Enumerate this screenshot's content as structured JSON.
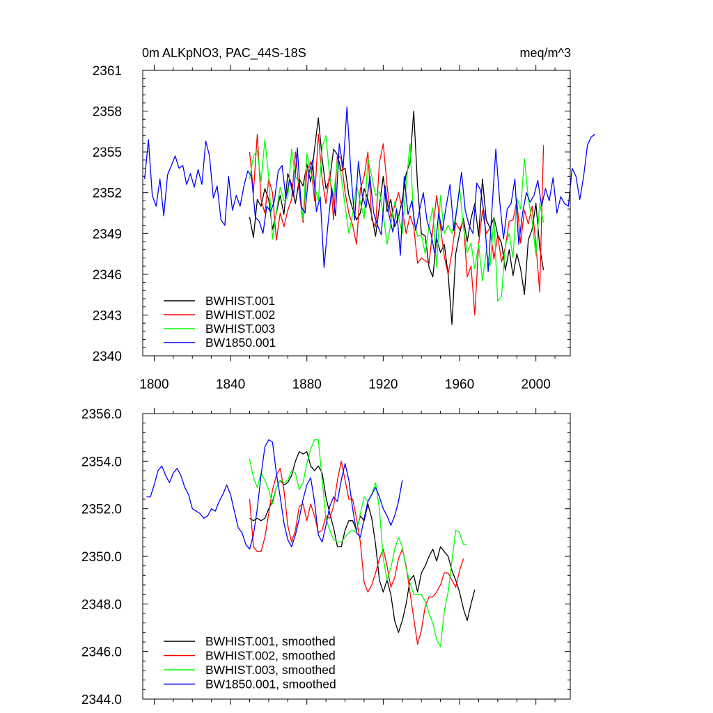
{
  "chart_data": [
    {
      "type": "line",
      "title": "0m ALKpNO3, PAC_44S-18S",
      "units": "meq/m^3",
      "xlim": [
        1794,
        2018
      ],
      "ylim": [
        2340,
        2361
      ],
      "y_ticks": [
        2340,
        2343,
        2346,
        2349,
        2352,
        2355,
        2358,
        2361
      ],
      "y_tick_labels": [
        "2340",
        "2343",
        "2346",
        "2349",
        "2352",
        "2355",
        "2358",
        "2361"
      ],
      "x_ticks": [
        1800,
        1840,
        1880,
        1920,
        1960,
        2000
      ],
      "x_tick_labels": [
        "1800",
        "1840",
        "1880",
        "1920",
        "1960",
        "2000"
      ],
      "legend": "bottom-left",
      "grid": false,
      "series": [
        {
          "name": "BWHIST.001",
          "color": "#000000",
          "x_start": 1850,
          "x_step": 2,
          "values": [
            2350.2,
            2348.7,
            2351.5,
            2351.0,
            2352.3,
            2351.5,
            2349.3,
            2350.5,
            2351.8,
            2350.4,
            2353.4,
            2352.6,
            2351.2,
            2353.0,
            2352.5,
            2354.1,
            2352.8,
            2355.2,
            2357.5,
            2354.5,
            2352.3,
            2353.0,
            2355.2,
            2354.8,
            2353.6,
            2353.8,
            2351.8,
            2350.8,
            2350.0,
            2350.5,
            2352.3,
            2351.5,
            2350.3,
            2348.8,
            2351.0,
            2353.2,
            2350.6,
            2351.5,
            2349.5,
            2350.2,
            2351.5,
            2353.4,
            2354.2,
            2358.0,
            2352.5,
            2349.0,
            2348.8,
            2346.5,
            2345.8,
            2348.6,
            2347.6,
            2348.2,
            2346.0,
            2342.3,
            2347.5,
            2349.0,
            2350.1,
            2348.4,
            2350.1,
            2351.2,
            2348.8,
            2353.0,
            2350.0,
            2349.4,
            2350.2,
            2348.9,
            2348.3,
            2346.3,
            2347.8,
            2345.9,
            2347.5,
            2346.4,
            2344.5,
            2348.5,
            2349.3,
            2351.2,
            2348.0,
            2346.3
          ]
        },
        {
          "name": "BWHIST.002",
          "color": "#ff0000",
          "x_start": 1850,
          "x_step": 2,
          "values": [
            2355.0,
            2352.0,
            2356.3,
            2351.5,
            2350.5,
            2353.0,
            2352.0,
            2348.5,
            2350.5,
            2349.5,
            2350.7,
            2351.5,
            2355.0,
            2352.0,
            2349.8,
            2353.6,
            2354.3,
            2351.4,
            2356.3,
            2353.0,
            2351.2,
            2353.5,
            2350.0,
            2354.8,
            2354.5,
            2352.0,
            2350.5,
            2349.6,
            2348.2,
            2352.3,
            2353.2,
            2355.0,
            2350.0,
            2349.5,
            2354.2,
            2355.6,
            2352.5,
            2350.2,
            2351.0,
            2352.0,
            2350.8,
            2349.0,
            2350.3,
            2349.5,
            2346.8,
            2347.2,
            2347.0,
            2346.8,
            2349.3,
            2351.8,
            2349.5,
            2347.3,
            2346.0,
            2347.6,
            2349.8,
            2349.3,
            2349.9,
            2345.8,
            2346.6,
            2343.0,
            2348.2,
            2350.7,
            2349.0,
            2349.4,
            2347.1,
            2348.9,
            2346.9,
            2348.0,
            2349.9,
            2350.0,
            2351.4,
            2348.3,
            2350.7,
            2349.7,
            2351.0,
            2348.2,
            2344.7,
            2355.5
          ]
        },
        {
          "name": "BWHIST.003",
          "color": "#00ff00",
          "x_start": 1850,
          "x_step": 2,
          "values": [
            2353.0,
            2354.7,
            2355.1,
            2352.8,
            2355.9,
            2353.2,
            2348.6,
            2350.6,
            2352.4,
            2351.4,
            2351.6,
            2355.2,
            2353.2,
            2352.7,
            2350.0,
            2354.9,
            2353.5,
            2352.5,
            2351.4,
            2355.4,
            2356.2,
            2353.1,
            2351.7,
            2354.4,
            2353.2,
            2351.0,
            2349.0,
            2350.4,
            2352.6,
            2351.3,
            2350.1,
            2354.5,
            2353.2,
            2351.8,
            2352.1,
            2350.4,
            2348.2,
            2349.7,
            2351.3,
            2350.2,
            2349.0,
            2352.6,
            2355.6,
            2349.9,
            2348.8,
            2348.9,
            2347.5,
            2349.6,
            2350.9,
            2346.5,
            2351.8,
            2349.0,
            2349.6,
            2349.0,
            2350.3,
            2352.4,
            2349.5,
            2347.6,
            2348.3,
            2346.4,
            2348.2,
            2345.5,
            2347.7,
            2346.6,
            2350.2,
            2344.0,
            2344.4,
            2348.1,
            2349.0,
            2347.2,
            2351.6,
            2350.8,
            2354.5,
            2351.6,
            2349.9,
            2347.4,
            2351.2,
            2349.8
          ]
        },
        {
          "name": "BW1850.001",
          "color": "#0000ff",
          "x_start": 1795,
          "x_step": 2,
          "values": [
            2353.0,
            2355.9,
            2351.8,
            2351.0,
            2353.0,
            2350.3,
            2353.3,
            2354.0,
            2354.7,
            2353.8,
            2354.0,
            2352.6,
            2353.4,
            2352.4,
            2353.7,
            2352.6,
            2355.8,
            2354.7,
            2351.6,
            2352.5,
            2350.0,
            2349.6,
            2353.2,
            2350.7,
            2351.8,
            2351.0,
            2352.5,
            2353.6,
            2353.2,
            2350.2,
            2349.9,
            2349.0,
            2351.0,
            2350.6,
            2351.4,
            2353.6,
            2354.0,
            2351.6,
            2353.0,
            2351.7,
            2355.3,
            2351.0,
            2350.5,
            2353.4,
            2354.4,
            2350.6,
            2351.7,
            2346.5,
            2349.6,
            2352.3,
            2350.3,
            2355.6,
            2353.8,
            2358.3,
            2353.6,
            2350.0,
            2354.3,
            2351.8,
            2350.9,
            2353.2,
            2350.5,
            2349.6,
            2348.9,
            2352.5,
            2350.4,
            2349.1,
            2350.8,
            2347.4,
            2353.2,
            2350.4,
            2351.4,
            2349.2,
            2350.7,
            2352.0,
            2349.9,
            2349.0,
            2347.5,
            2350.5,
            2349.2,
            2351.0,
            2352.6,
            2349.2,
            2351.2,
            2353.5,
            2350.7,
            2349.6,
            2349.0,
            2352.7,
            2352.2,
            2350.3,
            2346.2,
            2350.8,
            2355.2,
            2351.4,
            2348.6,
            2350.8,
            2351.2,
            2353.0,
            2348.2,
            2350.5,
            2352.0,
            2351.3,
            2351.8,
            2352.9,
            2351.0,
            2352.3,
            2351.4,
            2353.1,
            2350.5,
            2351.7,
            2351.2,
            2351.0,
            2353.8,
            2353.2,
            2351.5,
            2353.2,
            2355.5,
            2356.1,
            2356.3
          ]
        }
      ]
    },
    {
      "type": "line",
      "title": "",
      "xlim": [
        1794,
        2018
      ],
      "ylim": [
        2344,
        2356
      ],
      "y_ticks": [
        2344,
        2346,
        2348,
        2350,
        2352,
        2354,
        2356
      ],
      "y_tick_labels": [
        "2344.0",
        "2346.0",
        "2348.0",
        "2350.0",
        "2352.0",
        "2354.0",
        "2356.0"
      ],
      "x_ticks": [
        1800,
        1840,
        1880,
        1920,
        1960,
        2000
      ],
      "x_tick_labels": [],
      "legend": "bottom-left",
      "grid": false,
      "series": [
        {
          "name": "BWHIST.001, smoothed",
          "color": "#000000",
          "x_start": 1850,
          "x_step": 2,
          "values": [
            2351.6,
            2351.5,
            2351.6,
            2351.5,
            2351.6,
            2352.0,
            2352.3,
            2352.9,
            2353.2,
            2353.0,
            2353.1,
            2353.4,
            2354.0,
            2354.4,
            2354.3,
            2354.4,
            2353.8,
            2353.6,
            2353.8,
            2353.5,
            2352.5,
            2351.8,
            2351.2,
            2350.4,
            2350.4,
            2351.1,
            2351.5,
            2351.5,
            2351.1,
            2351.7,
            2351.5,
            2352.2,
            2351.6,
            2350.5,
            2349.0,
            2348.5,
            2349.0,
            2348.4,
            2347.3,
            2346.8,
            2347.3,
            2348.0,
            2349.0,
            2349.2,
            2348.5,
            2349.3,
            2349.6,
            2350.0,
            2350.3,
            2349.8,
            2350.4,
            2350.2,
            2350.0,
            2349.4,
            2349.0,
            2348.5,
            2347.8,
            2347.3,
            2348.0,
            2348.6
          ]
        },
        {
          "name": "BWHIST.002, smoothed",
          "color": "#ff0000",
          "x_start": 1850,
          "x_step": 2,
          "values": [
            2352.4,
            2350.4,
            2350.2,
            2350.2,
            2350.8,
            2351.8,
            2352.8,
            2353.4,
            2353.7,
            2352.8,
            2351.3,
            2350.6,
            2351.1,
            2352.1,
            2352.2,
            2351.5,
            2352.2,
            2351.7,
            2351.0,
            2351.1,
            2351.7,
            2351.6,
            2352.1,
            2353.2,
            2354.0,
            2353.2,
            2352.4,
            2352.4,
            2351.6,
            2350.6,
            2348.9,
            2348.5,
            2348.8,
            2349.3,
            2349.9,
            2350.3,
            2349.6,
            2348.7,
            2349.1,
            2349.9,
            2350.3,
            2349.6,
            2348.5,
            2347.4,
            2346.3,
            2346.9,
            2347.9,
            2348.3,
            2348.3,
            2348.5,
            2348.8,
            2349.3,
            2349.3,
            2349.0,
            2348.7,
            2349.4,
            2349.9
          ]
        },
        {
          "name": "BWHIST.003, smoothed",
          "color": "#00ff00",
          "x_start": 1850,
          "x_step": 2,
          "values": [
            2354.1,
            2353.3,
            2352.9,
            2353.5,
            2353.2,
            2352.8,
            2352.2,
            2352.9,
            2353.2,
            2353.1,
            2353.2,
            2353.6,
            2353.5,
            2352.8,
            2353.1,
            2353.9,
            2354.5,
            2354.9,
            2354.9,
            2353.2,
            2351.6,
            2351.1,
            2350.7,
            2350.6,
            2350.6,
            2350.8,
            2351.0,
            2351.1,
            2351.0,
            2351.8,
            2352.5,
            2352.3,
            2352.6,
            2353.1,
            2352.0,
            2349.9,
            2349.0,
            2349.5,
            2350.3,
            2350.8,
            2350.4,
            2349.5,
            2348.9,
            2348.4,
            2348.4,
            2348.4,
            2348.1,
            2347.6,
            2347.2,
            2346.5,
            2346.2,
            2347.7,
            2348.5,
            2349.8,
            2351.1,
            2351.0,
            2350.5,
            2350.5
          ]
        },
        {
          "name": "BW1850.001, smoothed",
          "color": "#0000ff",
          "x_start": 1796,
          "x_step": 2,
          "values": [
            2352.5,
            2352.5,
            2353.0,
            2353.6,
            2353.8,
            2353.4,
            2353.1,
            2353.5,
            2353.7,
            2353.4,
            2352.9,
            2352.6,
            2352.0,
            2351.9,
            2351.8,
            2351.6,
            2351.7,
            2352.0,
            2351.9,
            2352.3,
            2352.6,
            2353.0,
            2352.6,
            2351.9,
            2351.2,
            2351.0,
            2350.5,
            2350.3,
            2350.9,
            2352.0,
            2353.4,
            2354.6,
            2354.9,
            2354.8,
            2353.5,
            2352.5,
            2351.4,
            2350.7,
            2350.4,
            2350.9,
            2351.6,
            2352.4,
            2353.0,
            2353.3,
            2352.3,
            2350.9,
            2350.6,
            2351.3,
            2352.1,
            2352.5,
            2352.3,
            2353.2,
            2353.9,
            2353.2,
            2352.0,
            2351.0,
            2350.8,
            2351.6,
            2352.3,
            2352.6,
            2352.9,
            2352.5,
            2352.0,
            2351.7,
            2351.3,
            2351.7,
            2352.3,
            2353.2
          ]
        }
      ]
    }
  ]
}
